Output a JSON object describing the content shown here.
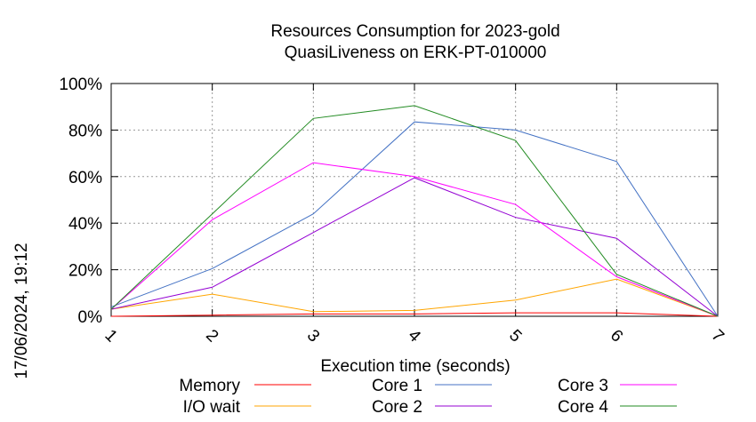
{
  "chart_data": {
    "type": "line",
    "title": "Resources Consumption for 2023-gold",
    "subtitle": "QuasiLiveness on ERK-PT-010000",
    "xlabel": "Execution time (seconds)",
    "ylabel": "",
    "side_label": "17/06/2024, 19:12",
    "x": [
      1,
      2,
      3,
      4,
      5,
      6,
      7
    ],
    "x_tick_labels": [
      "1",
      "2",
      "3",
      "4",
      "5",
      "6",
      "7"
    ],
    "y_tick_labels": [
      "0%",
      "20%",
      "40%",
      "60%",
      "80%",
      "100%"
    ],
    "xlim": [
      1,
      7
    ],
    "ylim": [
      0,
      100
    ],
    "grid": true,
    "legend_position": "bottom",
    "series": [
      {
        "name": "Memory",
        "color": "#ff0000",
        "values": [
          0,
          0.5,
          1,
          1,
          1.5,
          1.5,
          0
        ]
      },
      {
        "name": "I/O wait",
        "color": "#ffa500",
        "values": [
          3,
          9.5,
          2,
          2.5,
          7,
          16,
          0
        ]
      },
      {
        "name": "Core 1",
        "color": "#4472c4",
        "values": [
          4,
          20.5,
          44,
          83.5,
          80,
          66.5,
          0
        ]
      },
      {
        "name": "Core 2",
        "color": "#9400d3",
        "values": [
          3,
          12.5,
          36,
          59.5,
          42.5,
          33.5,
          0
        ]
      },
      {
        "name": "Core 3",
        "color": "#ff00ff",
        "values": [
          3,
          41.5,
          66,
          60,
          48,
          17,
          0
        ]
      },
      {
        "name": "Core 4",
        "color": "#228b22",
        "values": [
          3,
          44,
          85,
          90.5,
          75.5,
          18,
          0
        ]
      }
    ]
  }
}
